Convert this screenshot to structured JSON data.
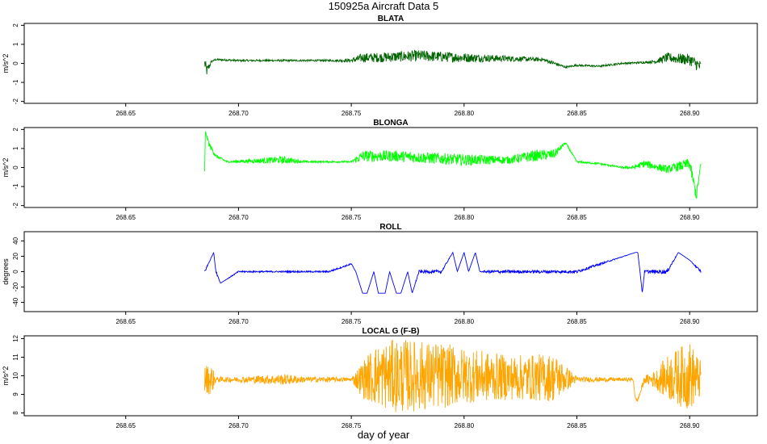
{
  "figure": {
    "title": "150925a   Aircraft Data 5",
    "xlabel": "day of year",
    "x_ticks": [
      268.65,
      268.7,
      268.75,
      268.8,
      268.85,
      268.9
    ],
    "x_tick_labels": [
      "268.65",
      "268.70",
      "268.75",
      "268.80",
      "268.85",
      "268.90"
    ],
    "xlim": [
      268.605,
      268.93
    ]
  },
  "chart_data": [
    {
      "type": "line",
      "title": "BLATA",
      "ylabel": "m/s^2",
      "color": "#006400",
      "ylim": [
        -2.1,
        2.1
      ],
      "y_ticks": [
        -2,
        -1,
        0,
        1,
        2
      ],
      "y_tick_labels": [
        "-2",
        "-1",
        "0",
        "1",
        "2"
      ],
      "series": [
        {
          "x": [
            268.685,
            268.686,
            268.688,
            268.69,
            268.7,
            268.72,
            268.74,
            268.75,
            268.755,
            268.76,
            268.78,
            268.8,
            268.82,
            268.835,
            268.84,
            268.845,
            268.85,
            268.86,
            268.87,
            268.88,
            268.885,
            268.89,
            268.9,
            268.905
          ],
          "y": [
            0.0,
            -0.4,
            0.1,
            0.2,
            0.15,
            0.15,
            0.15,
            0.15,
            0.3,
            0.3,
            0.4,
            0.3,
            0.25,
            0.2,
            0.0,
            -0.2,
            -0.1,
            -0.15,
            0.0,
            0.05,
            0.1,
            0.3,
            0.2,
            -0.2
          ],
          "noise": [
            0.3,
            0.3,
            0.05,
            0.05,
            0.05,
            0.05,
            0.05,
            0.1,
            0.25,
            0.25,
            0.3,
            0.25,
            0.15,
            0.1,
            0.1,
            0.05,
            0.05,
            0.05,
            0.05,
            0.05,
            0.1,
            0.25,
            0.3,
            0.35
          ]
        }
      ]
    },
    {
      "type": "line",
      "title": "BLONGA",
      "ylabel": "m/s^2",
      "color": "#00ff00",
      "ylim": [
        -2.1,
        2.1
      ],
      "y_ticks": [
        -2,
        -1,
        0,
        1,
        2
      ],
      "y_tick_labels": [
        "-2",
        "-1",
        "0",
        "1",
        "2"
      ],
      "series": [
        {
          "x": [
            268.685,
            268.6853,
            268.687,
            268.69,
            268.695,
            268.72,
            268.73,
            268.75,
            268.755,
            268.77,
            268.8,
            268.82,
            268.83,
            268.84,
            268.845,
            268.85,
            268.86,
            268.87,
            268.875,
            268.88,
            268.89,
            268.9,
            268.903,
            268.905
          ],
          "y": [
            -0.2,
            1.9,
            1.2,
            0.6,
            0.3,
            0.4,
            0.3,
            0.3,
            0.6,
            0.6,
            0.4,
            0.4,
            0.6,
            0.7,
            1.3,
            0.3,
            0.2,
            0.0,
            0.0,
            0.2,
            -0.1,
            0.2,
            -1.5,
            0.2
          ],
          "noise": [
            0.0,
            0.0,
            0.15,
            0.1,
            0.05,
            0.2,
            0.05,
            0.05,
            0.3,
            0.3,
            0.3,
            0.2,
            0.3,
            0.25,
            0.05,
            0.05,
            0.05,
            0.05,
            0.1,
            0.2,
            0.2,
            0.3,
            0.3,
            0.1
          ]
        }
      ]
    },
    {
      "type": "line",
      "title": "ROLL",
      "ylabel": "degrees",
      "color": "#0000ff",
      "ylim": [
        -52,
        52
      ],
      "y_ticks": [
        -40,
        -20,
        0,
        20,
        40
      ],
      "y_tick_labels": [
        "-40",
        "-20",
        "0",
        "20",
        "40"
      ],
      "series": [
        {
          "x": [
            268.685,
            268.689,
            268.69,
            268.692,
            268.7,
            268.72,
            268.74,
            268.75,
            268.752,
            268.755,
            268.757,
            268.76,
            268.762,
            268.765,
            268.767,
            268.77,
            268.772,
            268.775,
            268.777,
            268.78,
            268.79,
            268.795,
            268.797,
            268.8,
            268.802,
            268.805,
            268.807,
            268.81,
            268.82,
            268.85,
            268.876,
            268.877,
            268.878,
            268.879,
            268.88,
            268.89,
            268.895,
            268.9,
            268.905
          ],
          "y": [
            0,
            25,
            0,
            -15,
            0,
            0,
            0,
            10,
            0,
            -28,
            -28,
            0,
            -28,
            -28,
            0,
            -28,
            -28,
            0,
            -28,
            0,
            0,
            25,
            0,
            25,
            0,
            25,
            0,
            0,
            0,
            0,
            25,
            25,
            0,
            -28,
            0,
            0,
            25,
            15,
            0
          ],
          "noise": [
            2,
            0,
            2,
            0,
            1,
            1,
            1,
            1,
            0,
            0,
            0,
            0,
            0,
            0,
            0,
            0,
            0,
            0,
            0,
            2,
            2,
            0,
            0,
            0,
            0,
            0,
            0,
            2,
            2,
            2,
            0,
            0,
            0,
            0,
            2,
            3,
            0,
            0,
            2
          ]
        }
      ]
    },
    {
      "type": "line",
      "title": "LOCAL G (F-B)",
      "ylabel": "m/s^2",
      "color": "#ffa500",
      "ylim": [
        7.85,
        12.15
      ],
      "y_ticks": [
        8,
        9,
        10,
        11,
        12
      ],
      "y_tick_labels": [
        "8",
        "9",
        "10",
        "11",
        "12"
      ],
      "series": [
        {
          "x": [
            268.685,
            268.688,
            268.69,
            268.7,
            268.72,
            268.73,
            268.74,
            268.75,
            268.755,
            268.76,
            268.77,
            268.79,
            268.8,
            268.82,
            268.84,
            268.85,
            268.87,
            268.875,
            268.876,
            268.877,
            268.88,
            268.885,
            268.89,
            268.9,
            268.905
          ],
          "y": [
            9.8,
            9.8,
            9.8,
            9.8,
            9.8,
            9.8,
            9.8,
            9.8,
            9.8,
            10.0,
            10.0,
            10.0,
            10.0,
            9.9,
            9.9,
            9.8,
            9.8,
            9.8,
            8.7,
            8.7,
            9.8,
            9.8,
            9.9,
            10.0,
            9.8
          ],
          "noise": [
            0.8,
            0.8,
            0.15,
            0.15,
            0.3,
            0.15,
            0.15,
            0.1,
            1.0,
            1.6,
            2.0,
            1.8,
            1.5,
            1.2,
            1.3,
            0.15,
            0.1,
            0.1,
            0.1,
            0.1,
            0.2,
            0.5,
            1.2,
            1.9,
            1.0
          ]
        }
      ]
    }
  ]
}
